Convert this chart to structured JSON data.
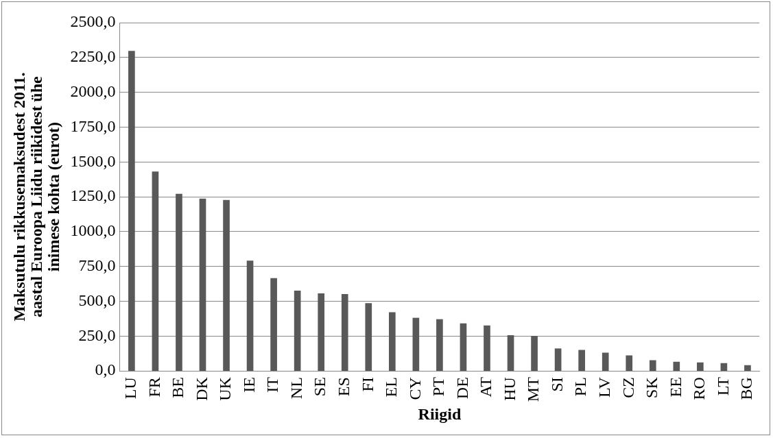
{
  "chart_data": {
    "type": "bar",
    "xlabel": "Riigid",
    "ylabel": "Maksutulu rikkusemaksudest 2011. aastal Euroopa Liidu riikidest ühe inimese kohta (eurot)",
    "categories": [
      "LU",
      "FR",
      "BE",
      "DK",
      "UK",
      "IE",
      "IT",
      "NL",
      "SE",
      "ES",
      "FI",
      "EL",
      "CY",
      "PT",
      "DE",
      "AT",
      "HU",
      "MT",
      "SI",
      "PL",
      "LV",
      "CZ",
      "SK",
      "EE",
      "RO",
      "LT",
      "BG"
    ],
    "values": [
      2295,
      1430,
      1270,
      1235,
      1225,
      790,
      665,
      575,
      555,
      550,
      485,
      420,
      380,
      370,
      340,
      325,
      255,
      250,
      160,
      150,
      130,
      110,
      75,
      65,
      60,
      55,
      40
    ],
    "color": "#595959",
    "ylim": [
      0,
      2500
    ],
    "yticks": [
      {
        "value": 0,
        "label": "0,0"
      },
      {
        "value": 250,
        "label": "250,0"
      },
      {
        "value": 500,
        "label": "500,0"
      },
      {
        "value": 750,
        "label": "750,0"
      },
      {
        "value": 1000,
        "label": "1000,0"
      },
      {
        "value": 1250,
        "label": "1250,0"
      },
      {
        "value": 1500,
        "label": "1500,0"
      },
      {
        "value": 1750,
        "label": "1750,0"
      },
      {
        "value": 2000,
        "label": "2000,0"
      },
      {
        "value": 2250,
        "label": "2250,0"
      },
      {
        "value": 2500,
        "label": "2500,0"
      }
    ],
    "grid": "y",
    "legend": false
  }
}
